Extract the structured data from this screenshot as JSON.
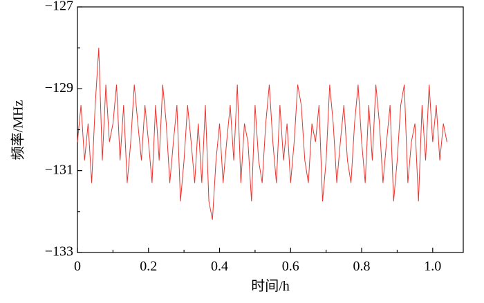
{
  "chart_data": {
    "type": "line",
    "xlabel": "时间/h",
    "ylabel": "频率/MHz",
    "xlim": [
      0,
      1.086
    ],
    "ylim": [
      -133,
      -127
    ],
    "xticks": [
      0,
      0.2,
      0.4,
      0.6,
      0.8,
      {
        "value": 1,
        "label": "1.0"
      }
    ],
    "xminorticks": [
      0.1,
      0.3,
      0.5,
      0.7,
      0.9
    ],
    "yticks": [
      {
        "value": -133,
        "label": "−133"
      },
      {
        "value": -131,
        "label": "−131"
      },
      {
        "value": -129,
        "label": "−129"
      },
      {
        "value": -127,
        "label": "−127"
      }
    ],
    "yminorticks": [
      -132,
      -130,
      -128
    ],
    "x": [
      0,
      0.01,
      0.02,
      0.03,
      0.04,
      0.05,
      0.06,
      0.07,
      0.08,
      0.09,
      0.1,
      0.11,
      0.12,
      0.13,
      0.14,
      0.15,
      0.16,
      0.17,
      0.18,
      0.19,
      0.2,
      0.21,
      0.22,
      0.23,
      0.24,
      0.25,
      0.26,
      0.27,
      0.28,
      0.29,
      0.3,
      0.31,
      0.32,
      0.33,
      0.34,
      0.35,
      0.36,
      0.37,
      0.38,
      0.39,
      0.4,
      0.41,
      0.42,
      0.43,
      0.44,
      0.45,
      0.46,
      0.47,
      0.48,
      0.49,
      0.5,
      0.51,
      0.52,
      0.53,
      0.54,
      0.55,
      0.56,
      0.57,
      0.58,
      0.59,
      0.6,
      0.61,
      0.62,
      0.63,
      0.64,
      0.65,
      0.66,
      0.67,
      0.68,
      0.69,
      0.7,
      0.71,
      0.72,
      0.73,
      0.74,
      0.75,
      0.76,
      0.77,
      0.78,
      0.79,
      0.8,
      0.81,
      0.82,
      0.83,
      0.84,
      0.85,
      0.86,
      0.87,
      0.88,
      0.89,
      0.9,
      0.91,
      0.92,
      0.93,
      0.94,
      0.95,
      0.96,
      0.97,
      0.98,
      0.99,
      1,
      1.01,
      1.02,
      1.03,
      1.04
    ],
    "series": [
      {
        "color": "#e8342e",
        "values": [
          -130.3,
          -129.4,
          -130.75,
          -129.85,
          -131.3,
          -129.4,
          -128,
          -130.75,
          -128.9,
          -130.3,
          -129.85,
          -128.9,
          -130.75,
          -129.4,
          -131.3,
          -130.3,
          -128.9,
          -129.85,
          -130.75,
          -129.4,
          -130.3,
          -131.3,
          -129.4,
          -130.75,
          -128.9,
          -129.85,
          -131.3,
          -130.3,
          -129.4,
          -131.75,
          -130.75,
          -129.4,
          -130.3,
          -131.3,
          -129.85,
          -131.3,
          -129.4,
          -131.75,
          -132.2,
          -130.75,
          -129.85,
          -131.3,
          -130.3,
          -129.4,
          -130.75,
          -128.9,
          -131.3,
          -129.85,
          -130.3,
          -131.75,
          -129.4,
          -130.75,
          -131.3,
          -129.85,
          -128.9,
          -130.3,
          -131.3,
          -129.4,
          -130.75,
          -129.85,
          -131.3,
          -130.3,
          -128.9,
          -129.4,
          -130.75,
          -131.3,
          -129.85,
          -130.3,
          -129.4,
          -131.75,
          -130.75,
          -128.9,
          -129.85,
          -131.3,
          -130.3,
          -129.4,
          -130.75,
          -131.3,
          -129.85,
          -128.9,
          -130.3,
          -131.3,
          -129.4,
          -130.75,
          -128.9,
          -129.85,
          -131.3,
          -130.3,
          -129.4,
          -131.75,
          -130.75,
          -129.4,
          -128.9,
          -131.3,
          -130.3,
          -129.85,
          -131.75,
          -129.4,
          -130.75,
          -128.9,
          -130.3,
          -129.4,
          -130.75,
          -129.85,
          -130.3
        ]
      }
    ]
  }
}
